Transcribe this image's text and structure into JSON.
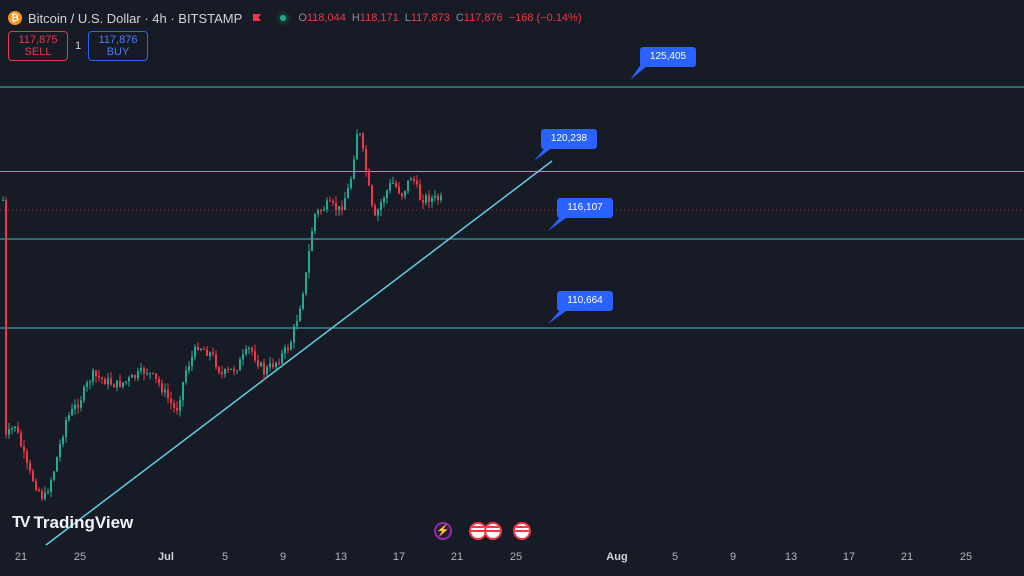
{
  "header": {
    "symbol_icon": "bitcoin-icon",
    "title": "Bitcoin / U.S. Dollar · 4h · BITSTAMP",
    "ohlc": {
      "o_label": "O",
      "o": "118,044",
      "h_label": "H",
      "h": "118,171",
      "l_label": "L",
      "l": "117,873",
      "c_label": "C",
      "c": "117,876",
      "change": "−168 (−0.14%)"
    }
  },
  "trade": {
    "sell_price": "117,875",
    "sell_label": "SELL",
    "quantity": "1",
    "buy_price": "117,876",
    "buy_label": "BUY"
  },
  "levels": [
    {
      "label": "125,405",
      "value": 125405
    },
    {
      "label": "120,238",
      "value": 120238
    },
    {
      "label": "116,107",
      "value": 116107
    },
    {
      "label": "110,664",
      "value": 110664
    }
  ],
  "colors": {
    "background": "#171b26",
    "up": "#22ab94",
    "down": "#f23645",
    "level_line": "#4fb9c6",
    "trend_line": "#5fd0e0",
    "callout": "#2962ff"
  },
  "brand": "TradingView",
  "x_axis": {
    "labels": [
      "21",
      "25",
      "Jul",
      "5",
      "9",
      "13",
      "17",
      "21",
      "25",
      "Aug",
      "5",
      "9",
      "13",
      "17",
      "21",
      "25"
    ]
  },
  "events": [
    "lightning-icon",
    "us-flag-icon",
    "us-flag-icon",
    "us-flag-icon"
  ]
}
